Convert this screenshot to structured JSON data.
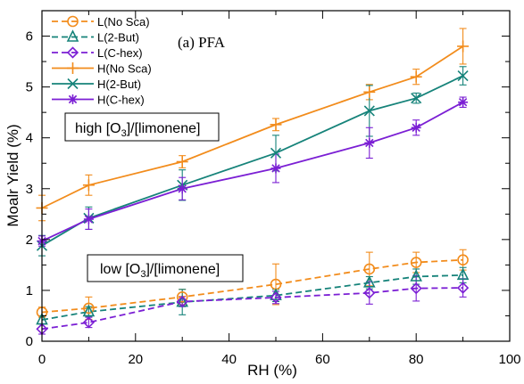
{
  "chart_data": {
    "type": "line",
    "panel_label": "(a) PFA",
    "xlabel": "RH (%)",
    "ylabel": "Moalr Yield (%)",
    "xlim": [
      0,
      100
    ],
    "ylim": [
      0,
      6.5
    ],
    "xticks": [
      0,
      20,
      40,
      60,
      80,
      100
    ],
    "yticks": [
      0,
      1,
      2,
      3,
      4,
      5,
      6
    ],
    "grid": false,
    "legend_position": "top-left",
    "annotations": {
      "high": {
        "pre": "high [O",
        "sub": "3",
        "post": "]/[limonene]"
      },
      "low": {
        "pre": "low [O",
        "sub": "3",
        "post": "]/[limonene]"
      }
    },
    "series": [
      {
        "name": "L(No Sca)",
        "color": "#f28c1c",
        "marker": "circle",
        "dashed": true,
        "x": [
          0,
          10,
          30,
          50,
          70,
          80,
          90
        ],
        "y": [
          0.57,
          0.65,
          0.87,
          1.12,
          1.42,
          1.55,
          1.6
        ],
        "err": [
          0.1,
          0.22,
          0.15,
          0.4,
          0.33,
          0.2,
          0.2
        ]
      },
      {
        "name": "L(2-But)",
        "color": "#16837a",
        "marker": "triangle",
        "dashed": true,
        "x": [
          0,
          10,
          30,
          50,
          70,
          80,
          90
        ],
        "y": [
          0.42,
          0.58,
          0.77,
          0.9,
          1.15,
          1.27,
          1.3
        ],
        "err": [
          0.08,
          0.1,
          0.25,
          0.12,
          0.12,
          0.15,
          0.15
        ]
      },
      {
        "name": "L(C-hex)",
        "color": "#7b1fd4",
        "marker": "diamond",
        "dashed": true,
        "x": [
          0,
          10,
          30,
          50,
          70,
          80,
          90
        ],
        "y": [
          0.24,
          0.37,
          0.78,
          0.86,
          0.95,
          1.04,
          1.05
        ],
        "err": [
          0.1,
          0.1,
          0.1,
          0.12,
          0.22,
          0.25,
          0.18
        ]
      },
      {
        "name": "H(No Sca)",
        "color": "#f28c1c",
        "marker": "plus",
        "dashed": false,
        "x": [
          0,
          10,
          30,
          50,
          70,
          80,
          90
        ],
        "y": [
          2.62,
          3.07,
          3.53,
          4.26,
          4.9,
          5.2,
          5.8
        ],
        "err": [
          0.25,
          0.2,
          0.12,
          0.12,
          0.15,
          0.15,
          0.35
        ]
      },
      {
        "name": "H(2-But)",
        "color": "#16837a",
        "marker": "x",
        "dashed": false,
        "x": [
          0,
          10,
          30,
          50,
          70,
          80,
          90
        ],
        "y": [
          1.88,
          2.42,
          3.07,
          3.7,
          4.53,
          4.78,
          5.22
        ],
        "err": [
          0.2,
          0.22,
          0.3,
          0.35,
          0.5,
          0.1,
          0.18
        ]
      },
      {
        "name": "H(C-hex)",
        "color": "#7b1fd4",
        "marker": "asterisk",
        "dashed": false,
        "x": [
          0,
          10,
          30,
          50,
          70,
          80,
          90
        ],
        "y": [
          1.97,
          2.4,
          3.0,
          3.4,
          3.9,
          4.2,
          4.7
        ],
        "err": [
          0.1,
          0.2,
          0.22,
          0.28,
          0.3,
          0.15,
          0.1
        ]
      }
    ]
  }
}
